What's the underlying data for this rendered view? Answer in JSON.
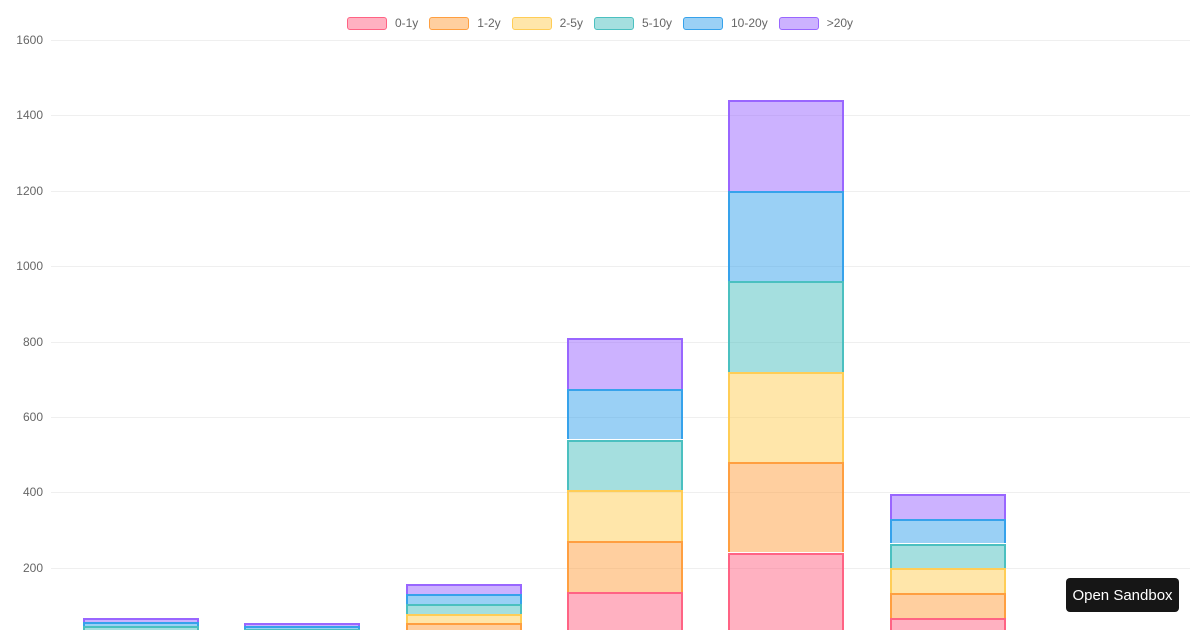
{
  "page": {
    "background_color": "#ffffff",
    "open_sandbox_button": {
      "label": "Open Sandbox",
      "background_color": "#161616",
      "text_color": "#ffffff"
    }
  },
  "chart_data": {
    "type": "bar",
    "stacked": true,
    "orientation": "vertical",
    "legend_position": "top",
    "grid": true,
    "axis_text_color": "#666666",
    "gridline_color": "#efefef",
    "ylim": [
      0,
      1600
    ],
    "y_ticks": [
      200,
      400,
      600,
      800,
      1000,
      1200,
      1400,
      1600
    ],
    "x_tick_labels_visible": false,
    "num_bars": 6,
    "series": [
      {
        "name": "0-1y",
        "border_color": "#FF6384",
        "fill_color": "rgba(255,99,132,0.5)",
        "values": [
          11,
          9,
          26,
          135,
          240,
          66
        ]
      },
      {
        "name": "1-2y",
        "border_color": "#FF9F40",
        "fill_color": "rgba(255,159,64,0.5)",
        "values": [
          11,
          9,
          26,
          135,
          240,
          66
        ]
      },
      {
        "name": "2-5y",
        "border_color": "#FFCD56",
        "fill_color": "rgba(255,205,86,0.5)",
        "values": [
          11,
          9,
          26,
          135,
          240,
          66
        ]
      },
      {
        "name": "5-10y",
        "border_color": "#4BC0C0",
        "fill_color": "rgba(75,192,192,0.5)",
        "values": [
          11,
          9,
          26,
          135,
          240,
          66
        ]
      },
      {
        "name": "10-20y",
        "border_color": "#36A2EB",
        "fill_color": "rgba(54,162,235,0.5)",
        "values": [
          11,
          9,
          26,
          135,
          240,
          66
        ]
      },
      {
        "name": ">20y",
        "border_color": "#9966FF",
        "fill_color": "rgba(153,102,255,0.5)",
        "values": [
          11,
          9,
          26,
          135,
          240,
          66
        ]
      }
    ],
    "bar_totals": [
      66,
      54,
      156,
      810,
      1440,
      396
    ]
  }
}
